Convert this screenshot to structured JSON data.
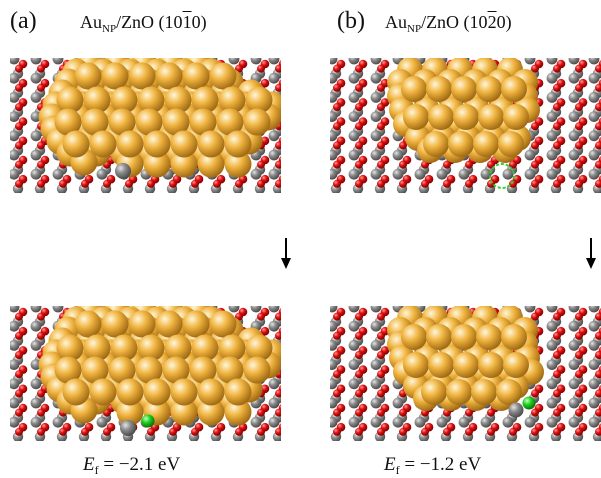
{
  "panels": [
    {
      "letter": "(a)",
      "title": {
        "main": "Au",
        "sub": "NP",
        "rest": "/ZnO (10",
        "barred": "1",
        "end": "0)"
      },
      "energy": {
        "sym": "E",
        "sub": "f",
        "eq": " = −2.1 eV"
      }
    },
    {
      "letter": "(b)",
      "title": {
        "main": "Au",
        "sub": "NP",
        "rest": "/ZnO (10",
        "barred": "2",
        "end": "0)"
      },
      "energy": {
        "sym": "E",
        "sub": "f",
        "eq": " = −1.2 eV"
      }
    }
  ],
  "colors": {
    "gold": "#f0b440",
    "gold_dark": "#a06a12",
    "zinc": "#8a8a8a",
    "oxygen": "#e01010",
    "dopant": "#1ed21e",
    "vacancy_ring": "#2ed02e"
  }
}
